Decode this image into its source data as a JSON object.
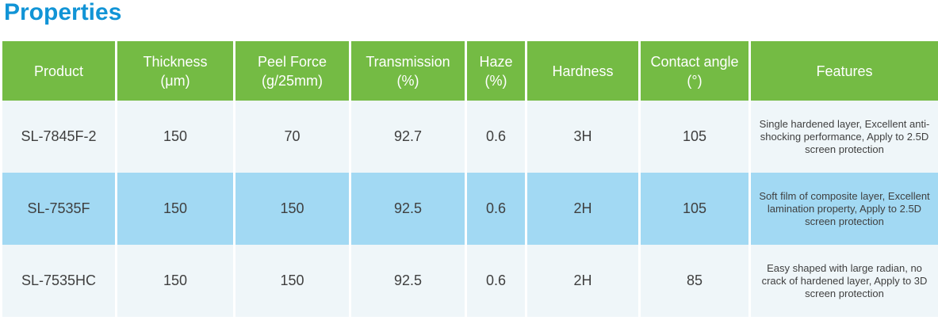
{
  "page_title": "Properties",
  "colors": {
    "title_text": "#1194d6",
    "header_bg": "#74bb44",
    "header_text": "#ffffff",
    "row_bg": "#eff6f9",
    "row_highlight_bg": "#a2d9f3",
    "cell_text": "#3f3f3f",
    "divider": "#ffffff"
  },
  "table": {
    "headers": [
      "Product",
      "Thickness\n(μm)",
      "Peel Force\n(g/25mm)",
      "Transmission\n(%)",
      "Haze\n(%)",
      "Hardness",
      "Contact angle\n(°)",
      "Features"
    ],
    "rows": [
      {
        "product": "SL-7845F-2",
        "thickness": "150",
        "peel_force": "70",
        "transmission": "92.7",
        "haze": "0.6",
        "hardness": "3H",
        "contact_angle": "105",
        "features": "Single hardened layer, Excellent anti-shocking performance, Apply to 2.5D screen protection",
        "highlighted": false
      },
      {
        "product": "SL-7535F",
        "thickness": "150",
        "peel_force": "150",
        "transmission": "92.5",
        "haze": "0.6",
        "hardness": "2H",
        "contact_angle": "105",
        "features": "Soft film of composite layer, Excellent lamination property, Apply to 2.5D screen protection",
        "highlighted": true
      },
      {
        "product": "SL-7535HC",
        "thickness": "150",
        "peel_force": "150",
        "transmission": "92.5",
        "haze": "0.6",
        "hardness": "2H",
        "contact_angle": "85",
        "features": "Easy shaped with large radian, no crack of hardened layer, Apply to 3D screen protection",
        "highlighted": false
      }
    ]
  }
}
